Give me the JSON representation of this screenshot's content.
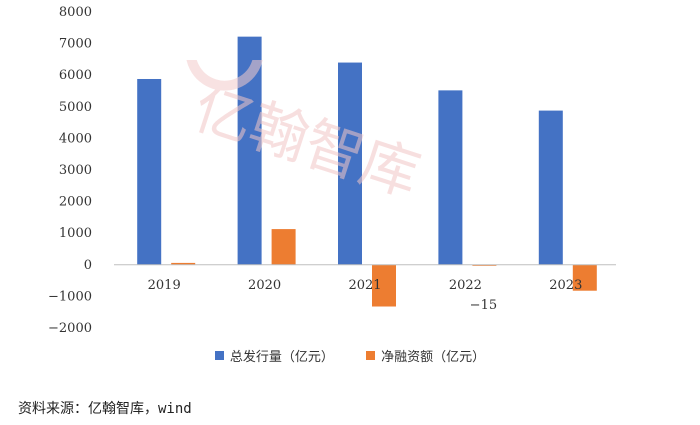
{
  "chart_data": {
    "type": "bar",
    "categories": [
      "2019",
      "2020",
      "2021",
      "2022",
      "2023"
    ],
    "series": [
      {
        "name": "总发行量（亿元）",
        "values": [
          5880,
          7220,
          6400,
          5520,
          4880
        ],
        "color": "#4472C4"
      },
      {
        "name": "净融资额（亿元）",
        "values": [
          60,
          1130,
          -1320,
          -15,
          -820
        ],
        "color": "#ED7D31"
      }
    ],
    "annotations": [
      {
        "category": "2022",
        "series": "净融资额（亿元）",
        "text": "-15"
      }
    ],
    "ylim": [
      -2000,
      8000
    ],
    "yticks": [
      -2000,
      -1000,
      0,
      1000,
      2000,
      3000,
      4000,
      5000,
      6000,
      7000,
      8000
    ],
    "legend_position": "bottom",
    "grid": false
  },
  "watermark": {
    "text": "亿翰智库",
    "color": "#f2c6c6"
  },
  "source": "资料来源：亿翰智库，wind"
}
